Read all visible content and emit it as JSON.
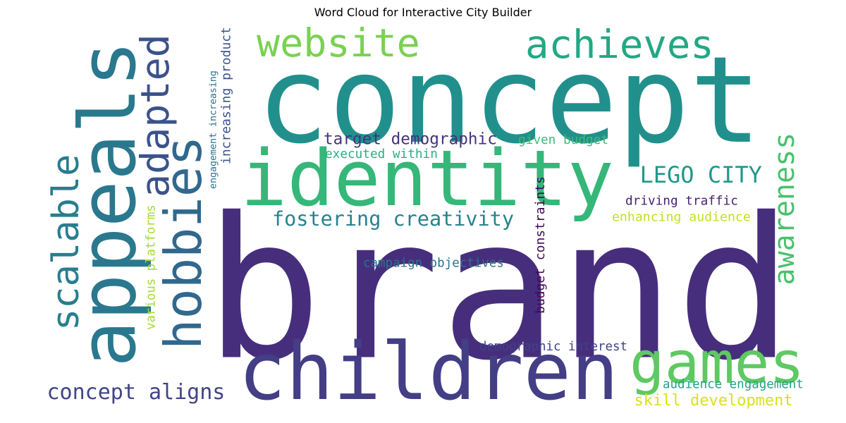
{
  "title": "Word Cloud for Interactive City Builder",
  "words": [
    {
      "text": "brand",
      "color": "#472e7c"
    },
    {
      "text": "concept",
      "color": "#21908d"
    },
    {
      "text": "identity",
      "color": "#35b779"
    },
    {
      "text": "children",
      "color": "#433e85"
    },
    {
      "text": "appeals",
      "color": "#2a788e"
    },
    {
      "text": "hobbies",
      "color": "#31688e"
    },
    {
      "text": "games",
      "color": "#5ec962"
    },
    {
      "text": "website",
      "color": "#7ad151"
    },
    {
      "text": "achieves",
      "color": "#22a884"
    },
    {
      "text": "adapted",
      "color": "#3b528b"
    },
    {
      "text": "scalable",
      "color": "#287d8e"
    },
    {
      "text": "awareness",
      "color": "#4ac16d"
    },
    {
      "text": "concept aligns",
      "color": "#414487"
    },
    {
      "text": "fostering creativity",
      "color": "#26828e"
    },
    {
      "text": "LEGO CITY",
      "color": "#1f988b"
    },
    {
      "text": "target demographic",
      "color": "#46337e"
    },
    {
      "text": "skill development",
      "color": "#d8e219"
    },
    {
      "text": "audience engagement",
      "color": "#20a386"
    },
    {
      "text": "demographic interest",
      "color": "#404387"
    },
    {
      "text": "campaign objectives",
      "color": "#2c728e"
    },
    {
      "text": "enhancing audience",
      "color": "#c2df23"
    },
    {
      "text": "driving traffic",
      "color": "#482173"
    },
    {
      "text": "given budget",
      "color": "#3dbc74"
    },
    {
      "text": "executed within",
      "color": "#29af7f"
    },
    {
      "text": "budget constraints",
      "color": "#450559"
    },
    {
      "text": "various platforms",
      "color": "#a5db36"
    },
    {
      "text": "engagement increasing",
      "color": "#2d708e"
    },
    {
      "text": "increasing product",
      "color": "#3b528b"
    }
  ]
}
